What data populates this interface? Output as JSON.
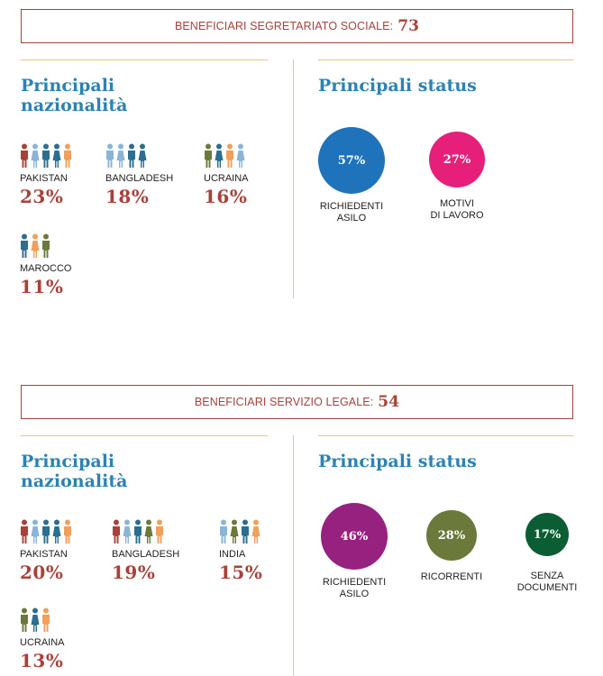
{
  "colors": {
    "accent_red": "#a8413a",
    "title_blue": "#2b82b4",
    "divider_gold": "#e6c77e",
    "person_palette": [
      "#a8413a",
      "#8ab4d8",
      "#2b6e8f",
      "#6b7a3a",
      "#f0a05a"
    ]
  },
  "sections": [
    {
      "banner_label": "BENEFICIARI SEGRETARIATO SOCIALE:",
      "banner_value": "73",
      "nationalities_title_line1": "Principali",
      "nationalities_title_line2": "nazionalità",
      "status_title": "Principali status",
      "nationalities": [
        {
          "name": "PAKISTAN",
          "percent": "23%",
          "people_colors": [
            "#a8413a",
            "#8ab4d8",
            "#2b6e8f",
            "#2b6e8f",
            "#f0a05a"
          ]
        },
        {
          "name": "BANGLADESH",
          "percent": "18%",
          "people_colors": [
            "#8ab4d8",
            "#8ab4d8",
            "#2b6e8f",
            "#2b6e8f"
          ]
        },
        {
          "name": "UCRAINA",
          "percent": "16%",
          "people_colors": [
            "#6b7a3a",
            "#2b6e8f",
            "#f0a05a",
            "#8ab4d8"
          ]
        },
        {
          "name": "MAROCCO",
          "percent": "11%",
          "people_colors": [
            "#2b6e8f",
            "#f0a05a",
            "#6b7a3a"
          ]
        }
      ],
      "statuses": [
        {
          "value": "57%",
          "label_line1": "RICHIEDENTI",
          "label_line2": "ASILO",
          "color": "#1f73bb"
        },
        {
          "value": "27%",
          "label_line1": "MOTIVI",
          "label_line2": "DI LAVORO",
          "color": "#e6207a"
        }
      ]
    },
    {
      "banner_label": "BENEFICIARI SERVIZIO LEGALE:",
      "banner_value": "54",
      "nationalities_title_line1": "Principali",
      "nationalities_title_line2": "nazionalità",
      "status_title": "Principali status",
      "nationalities": [
        {
          "name": "PAKISTAN",
          "percent": "20%",
          "people_colors": [
            "#a8413a",
            "#8ab4d8",
            "#2b6e8f",
            "#2b6e8f",
            "#f0a05a"
          ]
        },
        {
          "name": "BANGLADESH",
          "percent": "19%",
          "people_colors": [
            "#a8413a",
            "#8ab4d8",
            "#2b6e8f",
            "#6b7a3a",
            "#f0a05a"
          ]
        },
        {
          "name": "INDIA",
          "percent": "15%",
          "people_colors": [
            "#8ab4d8",
            "#6b7a3a",
            "#2b6e8f",
            "#f0a05a"
          ]
        },
        {
          "name": "UCRAINA",
          "percent": "13%",
          "people_colors": [
            "#6b7a3a",
            "#2b6e8f",
            "#f0a05a"
          ]
        }
      ],
      "statuses": [
        {
          "value": "46%",
          "label_line1": "RICHIEDENTI",
          "label_line2": "ASILO",
          "color": "#97217f"
        },
        {
          "value": "28%",
          "label_line1": "RICORRENTI",
          "label_line2": "",
          "color": "#6b7a3a"
        },
        {
          "value": "17%",
          "label_line1": "SENZA",
          "label_line2": "DOCUMENTI",
          "color": "#0b5e34"
        }
      ]
    }
  ]
}
